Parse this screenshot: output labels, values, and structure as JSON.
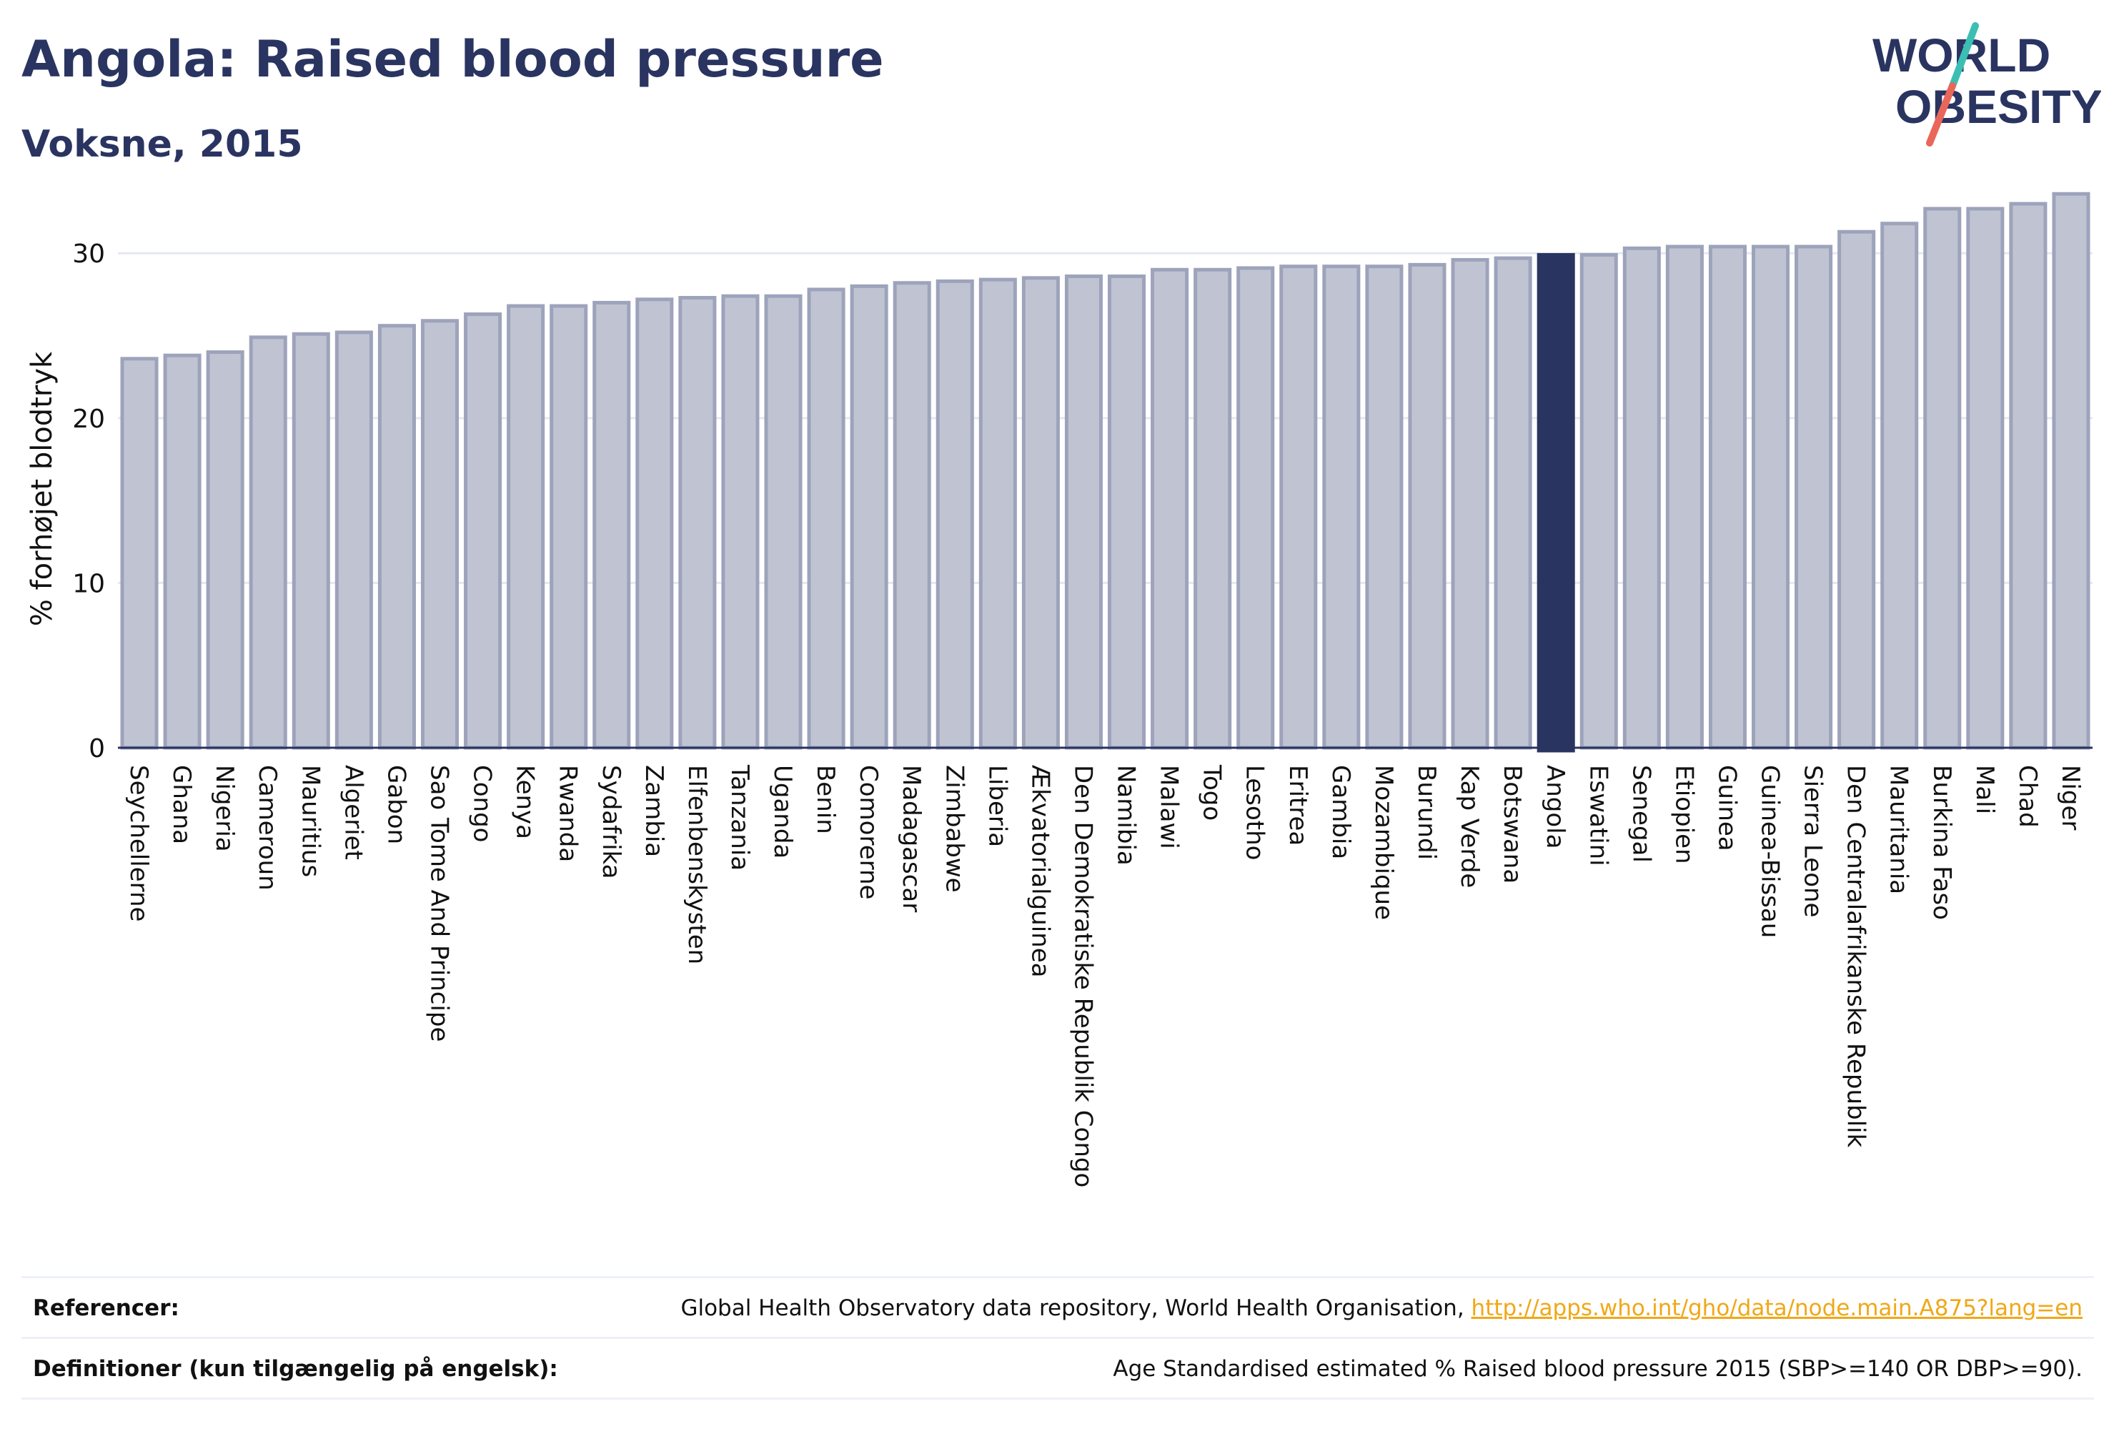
{
  "header": {
    "title": "Angola: Raised blood pressure",
    "subtitle": "Voksne, 2015"
  },
  "logo": {
    "line1": "WORLD",
    "line2": "OBESITY",
    "accent_teal": "#3cbfb3",
    "accent_red": "#e8675a",
    "text_color": "#2a3461"
  },
  "chart_data": {
    "type": "bar",
    "ylabel": "% forhøjet blodtryk",
    "ylim": [
      0,
      34
    ],
    "yticks": [
      0,
      10,
      20,
      30
    ],
    "grid": true,
    "highlight": "Angola",
    "colors": {
      "bar": "#c0c4d2",
      "bar_border": "#9da3bb",
      "highlight": "#2a3461"
    },
    "categories": [
      "Seychellerne",
      "Ghana",
      "Nigeria",
      "Cameroun",
      "Mauritius",
      "Algeriet",
      "Gabon",
      "Sao Tome And Principe",
      "Congo",
      "Kenya",
      "Rwanda",
      "Sydafrika",
      "Zambia",
      "Elfenbenskysten",
      "Tanzania",
      "Uganda",
      "Benin",
      "Comorerne",
      "Madagascar",
      "Zimbabwe",
      "Liberia",
      "Ækvatorialguinea",
      "Den Demokratiske Republik Congo",
      "Namibia",
      "Malawi",
      "Togo",
      "Lesotho",
      "Eritrea",
      "Gambia",
      "Mozambique",
      "Burundi",
      "Kap Verde",
      "Botswana",
      "Angola",
      "Eswatini",
      "Senegal",
      "Etiopien",
      "Guinea",
      "Guinea-Bissau",
      "Sierra Leone",
      "Den Centralafrikanske Republik",
      "Mauritania",
      "Burkina Faso",
      "Mali",
      "Chad",
      "Niger"
    ],
    "values": [
      23.6,
      23.8,
      24.0,
      24.9,
      25.1,
      25.2,
      25.6,
      25.9,
      26.3,
      26.8,
      26.8,
      27.0,
      27.2,
      27.3,
      27.4,
      27.4,
      27.8,
      28.0,
      28.2,
      28.3,
      28.4,
      28.5,
      28.6,
      28.6,
      29.0,
      29.0,
      29.1,
      29.2,
      29.2,
      29.2,
      29.3,
      29.6,
      29.7,
      29.9,
      29.9,
      30.3,
      30.4,
      30.4,
      30.4,
      30.4,
      31.3,
      31.8,
      32.7,
      32.7,
      33.0,
      33.6
    ]
  },
  "references": {
    "label": "Referencer:",
    "text": "Global Health Observatory data repository, World Health Organisation, ",
    "link": "http://apps.who.int/gho/data/node.main.A875?lang=en"
  },
  "definitions": {
    "label": "Definitioner (kun tilgængelig på engelsk):",
    "text": "Age Standardised estimated % Raised blood pressure 2015 (SBP>=140 OR DBP>=90)."
  }
}
